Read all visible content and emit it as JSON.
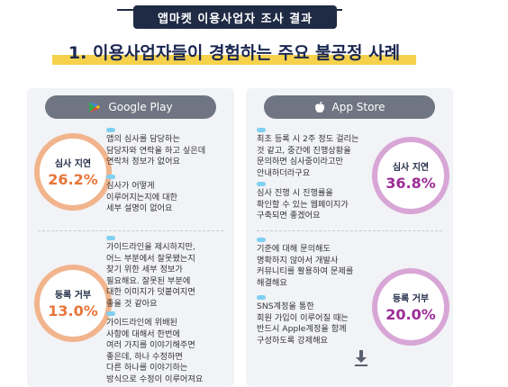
{
  "header": {
    "subtitle": "앱마켓 이용사업자 조사 결과",
    "title": "1. 이용사업자들이 경험하는 주요 불공정 사례"
  },
  "stores": {
    "google": {
      "name": "Google Play",
      "icon": "google-play-icon",
      "metrics": [
        {
          "label": "심사 지연",
          "value": "26.2%"
        },
        {
          "label": "등록 거부",
          "value": "13.0%"
        }
      ],
      "quotes": [
        "앱의 심사를 담당하는\n담당자와 연락을 하고 싶은데\n연락처 정보가 없어요",
        "심사가 어떻게\n이루어지는지에 대한\n세부 설명이 없어요",
        "가이드라인을 제시하지만,\n어느 부분에서 잘못됐는지\n찾기 위한 세부 정보가\n필요해요. 잘못된 부분에\n대한 이미지가 덧붙여지면\n좋을 것 같아요",
        "가이드라인에 위배된\n사항에 대해서 한번에\n여러 가지를 이야기해주면\n좋은데, 하나 수정하면\n다른 하나를 이야기하는\n방식으로 수정이 이루어져요"
      ]
    },
    "apple": {
      "name": "App Store",
      "icon": "apple-icon",
      "metrics": [
        {
          "label": "심사 지연",
          "value": "36.8%"
        },
        {
          "label": "등록 거부",
          "value": "20.0%"
        }
      ],
      "quotes": [
        "최초 등록 시 2주 정도 걸리는\n것 같고, 중간에 진행상황을\n문의하면 심사중이라고만\n안내하더라구요",
        "심사 진행 시 진행률을\n확인할 수 있는 웹페이지가\n구축되면 좋겠어요",
        "기준에 대해 문의해도\n명확하지 않아서 개발사\n커뮤니티를 활용하여 문제를\n해결해요",
        "SNS계정을 통한\n회원 가입이 이루어질 때는\n반드시 Apple계정을 함께\n구성하도록 강제해요"
      ]
    }
  },
  "colors": {
    "navy": "#1f2a44",
    "yellow_highlight": "#f6d24c",
    "orange": "#e8753a",
    "purple": "#9c2c96",
    "quote_mark": "#7fd0f2"
  }
}
